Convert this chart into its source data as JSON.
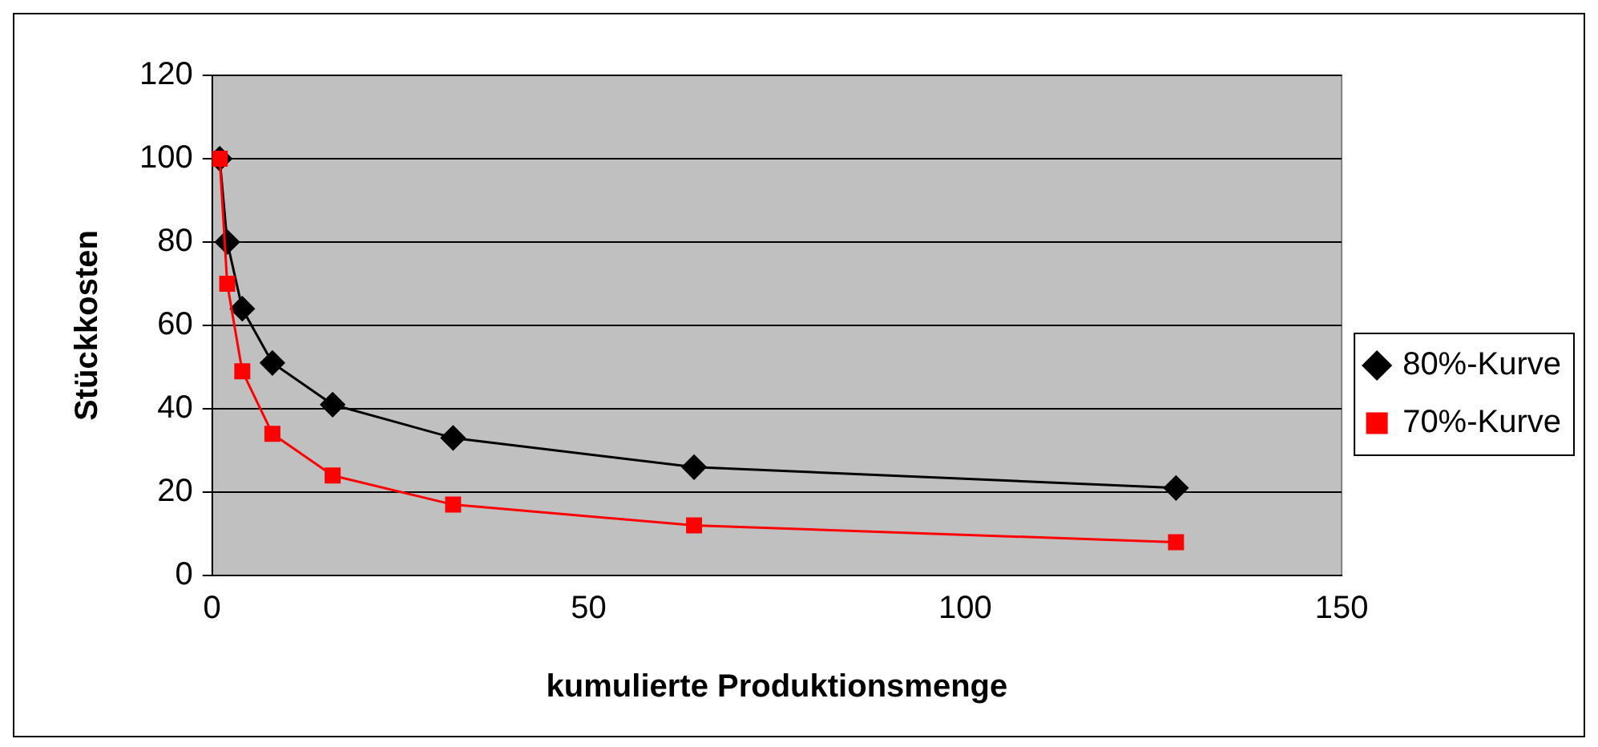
{
  "chart_data": {
    "type": "line",
    "xlabel": "kumulierte Produktionsmenge",
    "ylabel": "Stückkosten",
    "x": [
      1,
      2,
      4,
      8,
      16,
      32,
      64,
      128
    ],
    "series": [
      {
        "name": "80%-Kurve",
        "color": "#000000",
        "marker": "diamond",
        "values": [
          100,
          80,
          64,
          51,
          41,
          33,
          26,
          21
        ]
      },
      {
        "name": "70%-Kurve",
        "color": "#ff0000",
        "marker": "square",
        "values": [
          100,
          70,
          49,
          34,
          24,
          17,
          12,
          8
        ]
      }
    ],
    "xlim": [
      0,
      150
    ],
    "xticks": [
      0,
      50,
      100,
      150
    ],
    "ylim": [
      0,
      120
    ],
    "yticks": [
      0,
      20,
      40,
      60,
      80,
      100,
      120
    ],
    "grid": "y",
    "legend": "right",
    "line_style": "solid"
  }
}
